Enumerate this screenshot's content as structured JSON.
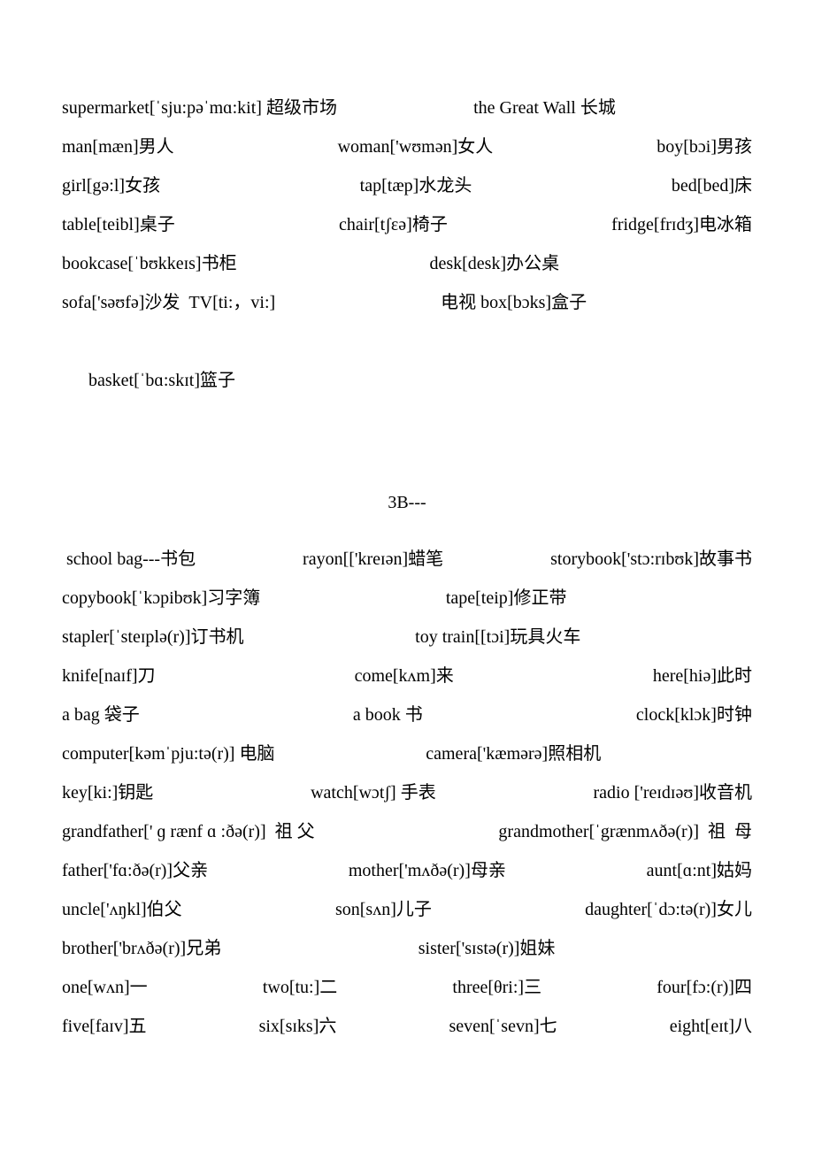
{
  "doc": {
    "fontsize": 20,
    "lineheight": 2.2,
    "text_color": "#000000",
    "background_color": "#ffffff",
    "section1_lines": [
      {
        "parts": [
          "supermarket[ˈsju:pəˈmɑ:kit] 超级市场",
          "the Great Wall 长城",
          ""
        ]
      },
      {
        "parts": [
          "man[mæn]男人",
          "woman['wʊmən]女人",
          "boy[bɔi]男孩"
        ]
      },
      {
        "parts": [
          "girl[gə:l]女孩",
          "tap[tæp]水龙头",
          "bed[bed]床"
        ]
      },
      {
        "parts": [
          "table[teibl]桌子",
          "chair[tʃɛə]椅子",
          "fridge[frɪdʒ]电冰箱"
        ]
      },
      {
        "parts": [
          "bookcase[ˈbʊkkeɪs]书柜",
          "desk[desk]办公桌",
          ""
        ]
      },
      {
        "parts": [
          "sofa['səʊfə]沙发  TV[ti:，vi:]",
          "电视 box[bɔks]盒子",
          ""
        ]
      },
      {
        "parts": [
          "basket[ˈbɑ:skɪt]篮子",
          "",
          ""
        ]
      }
    ],
    "section2_heading": "3B---",
    "section2_lines": [
      {
        "parts": [
          " school bag---书包",
          "rayon[['kreɪən]蜡笔",
          "storybook['stɔ:rɪbʊk]故事书"
        ]
      },
      {
        "parts": [
          "copybook[ˈkɔpibʊk]习字簿",
          "tape[teip]修正带",
          ""
        ]
      },
      {
        "parts": [
          "stapler[ˈsteɪplə(r)]订书机",
          "toy train[[tɔi]玩具火车",
          ""
        ]
      },
      {
        "parts": [
          "knife[naɪf]刀",
          "come[kʌm]来",
          "here[hiə]此时"
        ]
      },
      {
        "parts": [
          "a bag 袋子",
          "a book 书",
          "clock[klɔk]时钟"
        ]
      },
      {
        "parts": [
          "computer[kəmˈpju:tə(r)] 电脑",
          "camera['kæmərə]照相机",
          ""
        ]
      },
      {
        "parts": [
          "key[ki:]钥匙",
          "watch[wɔtʃ] 手表",
          "radio ['reɪdɪəʊ]收音机"
        ]
      },
      {
        "parts": [
          "grandfather[' ɡ rænf ɑ :ðə(r)]  祖 父",
          "grandmother[ˈgrænmʌðə(r)]  祖  母"
        ]
      },
      {
        "parts": [
          "father['fɑ:ðə(r)]父亲",
          "mother['mʌðə(r)]母亲",
          "aunt[ɑ:nt]姑妈"
        ]
      },
      {
        "parts": [
          "uncle['ʌŋkl]伯父",
          "son[sʌn]儿子",
          "daughter[ˈdɔ:tə(r)]女儿"
        ]
      },
      {
        "parts": [
          "brother['brʌðə(r)]兄弟",
          "sister['sɪstə(r)]姐妹",
          ""
        ]
      },
      {
        "parts": [
          "one[wʌn]一",
          "two[tu:]二",
          "three[θri:]三",
          "four[fɔ:(r)]四"
        ]
      },
      {
        "parts": [
          "five[faɪv]五",
          "six[sɪks]六",
          "seven[ˈsevn]七",
          "eight[eɪt]八"
        ]
      }
    ]
  }
}
